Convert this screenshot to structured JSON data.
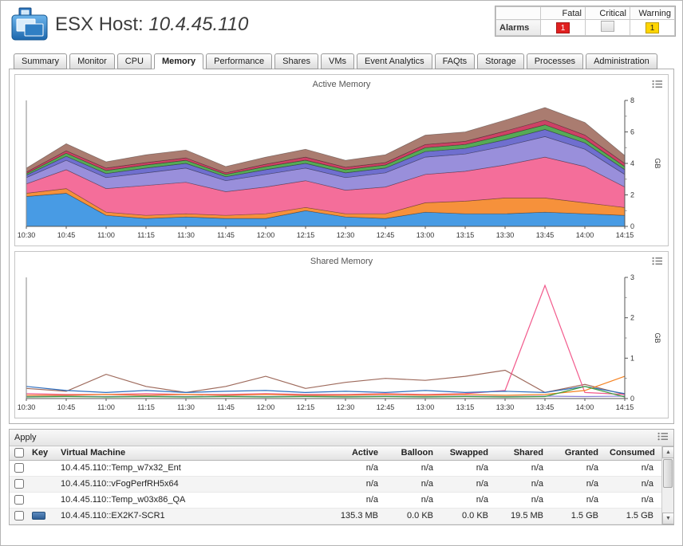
{
  "header": {
    "title": "ESX Host: ",
    "host": "10.4.45.110"
  },
  "alarms": {
    "label": "Alarms",
    "columns": [
      "Fatal",
      "Critical",
      "Warning"
    ],
    "counts": {
      "fatal": "1",
      "critical": "",
      "warning": "1"
    },
    "colors": {
      "fatal": "#e02020",
      "critical": "#e8e8e8",
      "warning": "#ffd500"
    }
  },
  "tabs": {
    "active": "Memory",
    "items": [
      "Summary",
      "Monitor",
      "CPU",
      "Memory",
      "Performance",
      "Shares",
      "VMs",
      "Event Analytics",
      "FAQts",
      "Storage",
      "Processes",
      "Administration"
    ]
  },
  "chart_data": [
    {
      "type": "area",
      "title": "Active Memory",
      "ylabel": "GB",
      "ylim": [
        0,
        8
      ],
      "yticks": [
        0,
        2,
        4,
        6,
        8
      ],
      "legend": "none",
      "grid": false,
      "x": [
        "10:30",
        "10:45",
        "11:00",
        "11:15",
        "11:30",
        "11:45",
        "12:00",
        "12:15",
        "12:30",
        "12:45",
        "13:00",
        "13:15",
        "13:30",
        "13:45",
        "14:00",
        "14:15"
      ],
      "series": [
        {
          "color": "#2f8de0",
          "values": [
            1.9,
            2.1,
            0.7,
            0.5,
            0.6,
            0.5,
            0.5,
            1.0,
            0.6,
            0.5,
            0.9,
            0.8,
            0.8,
            0.9,
            0.8,
            0.7
          ]
        },
        {
          "color": "#f58220",
          "values": [
            0.2,
            0.3,
            0.2,
            0.2,
            0.2,
            0.2,
            0.3,
            0.2,
            0.2,
            0.3,
            0.6,
            0.8,
            1.0,
            0.9,
            0.7,
            0.5
          ]
        },
        {
          "color": "#f25a8c",
          "values": [
            0.6,
            1.2,
            1.5,
            1.9,
            2.0,
            1.5,
            1.7,
            1.7,
            1.5,
            1.7,
            1.8,
            1.9,
            2.1,
            2.6,
            2.3,
            1.3
          ]
        },
        {
          "color": "#8b7fd6",
          "values": [
            0.4,
            0.6,
            0.7,
            0.8,
            0.9,
            0.7,
            0.8,
            0.8,
            0.8,
            0.9,
            1.1,
            1.1,
            1.2,
            1.3,
            1.1,
            0.8
          ]
        },
        {
          "color": "#5b5bc8",
          "values": [
            0.15,
            0.25,
            0.25,
            0.3,
            0.3,
            0.25,
            0.3,
            0.3,
            0.3,
            0.3,
            0.35,
            0.35,
            0.4,
            0.45,
            0.4,
            0.3
          ]
        },
        {
          "color": "#3f9e3f",
          "values": [
            0.1,
            0.2,
            0.2,
            0.2,
            0.2,
            0.15,
            0.2,
            0.2,
            0.2,
            0.2,
            0.25,
            0.25,
            0.3,
            0.3,
            0.25,
            0.2
          ]
        },
        {
          "color": "#c62851",
          "values": [
            0.1,
            0.15,
            0.15,
            0.15,
            0.15,
            0.1,
            0.15,
            0.2,
            0.15,
            0.15,
            0.2,
            0.2,
            0.25,
            0.3,
            0.25,
            0.2
          ]
        },
        {
          "color": "#9e6a5c",
          "values": [
            0.25,
            0.45,
            0.4,
            0.5,
            0.5,
            0.4,
            0.45,
            0.5,
            0.45,
            0.5,
            0.6,
            0.6,
            0.7,
            0.8,
            0.8,
            0.5
          ]
        }
      ]
    },
    {
      "type": "line",
      "title": "Shared Memory",
      "ylabel": "GB",
      "ylim": [
        0,
        3
      ],
      "yticks": [
        0,
        1,
        2,
        3
      ],
      "legend": "none",
      "grid": false,
      "x": [
        "10:30",
        "10:45",
        "11:00",
        "11:15",
        "11:30",
        "11:45",
        "12:00",
        "12:15",
        "12:30",
        "12:45",
        "13:00",
        "13:15",
        "13:30",
        "13:45",
        "14:00",
        "14:15"
      ],
      "series": [
        {
          "color": "#9e6a5c",
          "values": [
            0.25,
            0.18,
            0.6,
            0.3,
            0.15,
            0.3,
            0.55,
            0.25,
            0.4,
            0.5,
            0.45,
            0.55,
            0.7,
            0.15,
            0.35,
            0.1
          ]
        },
        {
          "color": "#f25a8c",
          "values": [
            0.12,
            0.1,
            0.1,
            0.12,
            0.1,
            0.1,
            0.12,
            0.1,
            0.1,
            0.12,
            0.1,
            0.12,
            0.2,
            2.8,
            0.15,
            0.1
          ]
        },
        {
          "color": "#2f6fbf",
          "values": [
            0.3,
            0.2,
            0.15,
            0.2,
            0.15,
            0.18,
            0.2,
            0.15,
            0.18,
            0.15,
            0.2,
            0.15,
            0.18,
            0.15,
            0.3,
            0.12
          ]
        },
        {
          "color": "#f58220",
          "values": [
            0.08,
            0.08,
            0.1,
            0.08,
            0.1,
            0.08,
            0.1,
            0.08,
            0.08,
            0.1,
            0.08,
            0.1,
            0.08,
            0.1,
            0.2,
            0.55
          ]
        },
        {
          "color": "#8b7fd6",
          "values": [
            0.05,
            0.06,
            0.05,
            0.06,
            0.05,
            0.06,
            0.05,
            0.06,
            0.05,
            0.06,
            0.05,
            0.06,
            0.05,
            0.06,
            0.05,
            0.06
          ]
        },
        {
          "color": "#3f9e3f",
          "values": [
            0.04,
            0.05,
            0.04,
            0.05,
            0.04,
            0.05,
            0.04,
            0.05,
            0.04,
            0.05,
            0.04,
            0.05,
            0.04,
            0.05,
            0.3,
            0.04
          ]
        }
      ]
    }
  ],
  "vm_table": {
    "apply_label": "Apply",
    "columns": [
      "Key",
      "Virtual Machine",
      "Active",
      "Balloon",
      "Swapped",
      "Shared",
      "Granted",
      "Consumed"
    ],
    "rows": [
      {
        "key_color": "",
        "vm": "10.4.45.110::Temp_w7x32_Ent",
        "values": [
          "n/a",
          "n/a",
          "n/a",
          "n/a",
          "n/a",
          "n/a"
        ]
      },
      {
        "key_color": "",
        "vm": "10.4.45.110::vFogPerfRH5x64",
        "values": [
          "n/a",
          "n/a",
          "n/a",
          "n/a",
          "n/a",
          "n/a"
        ]
      },
      {
        "key_color": "",
        "vm": "10.4.45.110::Temp_w03x86_QA",
        "values": [
          "n/a",
          "n/a",
          "n/a",
          "n/a",
          "n/a",
          "n/a"
        ]
      },
      {
        "key_color": "#3a6ea8",
        "vm": "10.4.45.110::EX2K7-SCR1",
        "values": [
          "135.3 MB",
          "0.0 KB",
          "0.0 KB",
          "19.5 MB",
          "1.5 GB",
          "1.5 GB"
        ]
      }
    ]
  }
}
